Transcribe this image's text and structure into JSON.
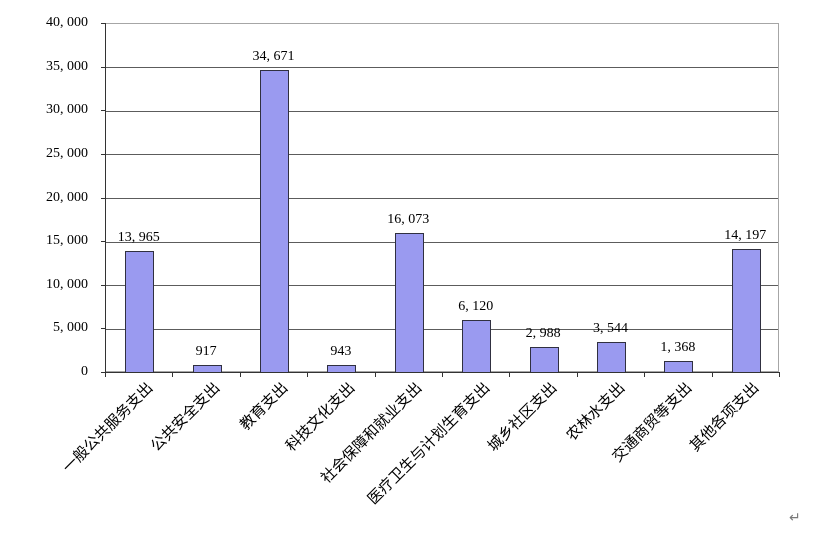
{
  "page": {
    "background": "#ffffff",
    "return_mark": "↵"
  },
  "chart_data": {
    "type": "bar",
    "title": "",
    "legend_position": "none",
    "grid": true,
    "categories": [
      "一般公共服务支出",
      "公共安全支出",
      "教育支出",
      "科技文化支出",
      "社会保障和就业支出",
      "医疗卫生与计划生育支出",
      "城乡社区支出",
      "农林水支出",
      "交通商贸等支出",
      "其他各项支出"
    ],
    "values": [
      13965,
      917,
      34671,
      943,
      16073,
      6120,
      2988,
      3544,
      1368,
      14197
    ],
    "value_labels": [
      "13, 965",
      "917",
      "34, 671",
      "943",
      "16, 073",
      "6, 120",
      "2, 988",
      "3, 544",
      "1, 368",
      "14, 197"
    ],
    "xlabel": "",
    "ylabel": "",
    "y_axis": {
      "min": 0,
      "max": 40000,
      "step": 5000,
      "tick_values": [
        0,
        5000,
        10000,
        15000,
        20000,
        25000,
        30000,
        35000,
        40000
      ],
      "tick_labels": [
        "0",
        "5, 000",
        "10, 000",
        "15, 000",
        "20, 000",
        "25, 000",
        "30, 000",
        "35, 000",
        "40, 000"
      ]
    },
    "colors": {
      "bar_fill": "#9a9af0",
      "bar_border": "#303040",
      "gridline": "#5c5c5c",
      "plot_border": "#a6a6a6",
      "axis": "#333333",
      "text": "#000000"
    }
  }
}
